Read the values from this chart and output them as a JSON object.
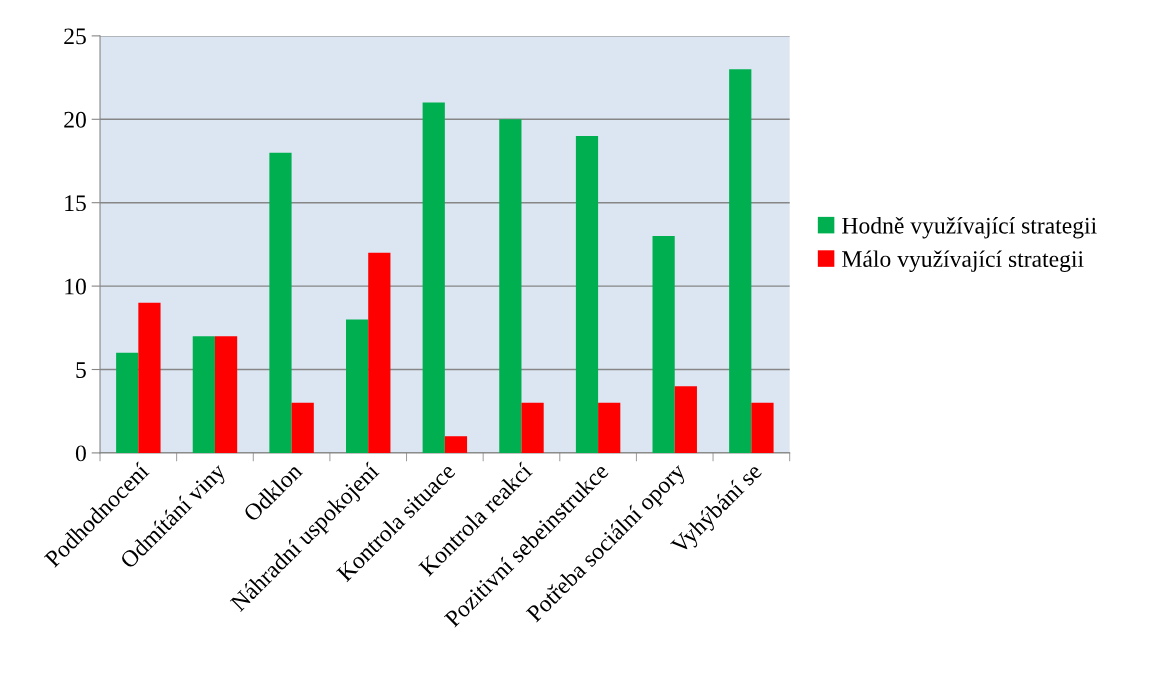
{
  "chart_data": {
    "type": "bar",
    "categories": [
      "Podhodnocení",
      "Odmítání viny",
      "Odklon",
      "Náhradní uspokojení",
      "Kontrola situace",
      "Kontrola reakcí",
      "Pozitivní sebeinstrukce",
      "Potřeba sociální opory",
      "Vyhýbání se"
    ],
    "series": [
      {
        "name": "Hodně využívající strategii",
        "color": "#00b050",
        "values": [
          6,
          7,
          18,
          8,
          21,
          20,
          19,
          13,
          23
        ]
      },
      {
        "name": "Málo využívající strategii",
        "color": "#ff0000",
        "values": [
          9,
          7,
          3,
          12,
          1,
          3,
          3,
          4,
          3
        ]
      }
    ],
    "ylim": [
      0,
      25
    ],
    "yticks": [
      0,
      5,
      10,
      15,
      20,
      25
    ],
    "grid": "y",
    "legend": "right"
  }
}
